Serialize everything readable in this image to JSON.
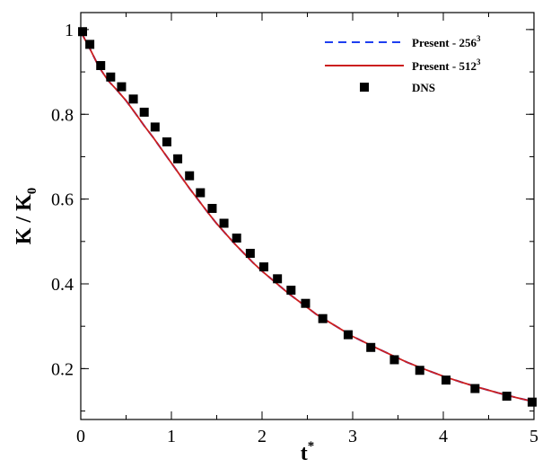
{
  "chart_data": {
    "type": "line",
    "xlabel": "t",
    "xlabel_superscript": "*",
    "ylabel": "K / K",
    "ylabel_subscript": "0",
    "xlim": [
      0,
      5
    ],
    "ylim": [
      0.08,
      1.04
    ],
    "xticks": [
      0,
      1,
      2,
      3,
      4,
      5
    ],
    "yticks": [
      0.2,
      0.4,
      0.6,
      0.8,
      1
    ],
    "grid": false,
    "legend_position": "top-right",
    "series": [
      {
        "name": "Present - 256",
        "name_superscript": "3",
        "style": "dashed",
        "color": "#1f3ff0",
        "x": [
          0,
          0.1,
          0.2,
          0.3,
          0.4,
          0.5,
          0.6,
          0.7,
          0.8,
          0.9,
          1.0,
          1.1,
          1.2,
          1.3,
          1.4,
          1.5,
          1.6,
          1.7,
          1.8,
          1.9,
          2.0,
          2.1,
          2.2,
          2.3,
          2.4,
          2.5,
          2.6,
          2.8,
          3.0,
          3.2,
          3.4,
          3.6,
          3.8,
          4.0,
          4.2,
          4.4,
          4.6,
          4.8,
          5.0
        ],
        "y": [
          0.995,
          0.955,
          0.912,
          0.88,
          0.857,
          0.832,
          0.803,
          0.773,
          0.745,
          0.715,
          0.685,
          0.655,
          0.625,
          0.597,
          0.569,
          0.542,
          0.518,
          0.494,
          0.472,
          0.45,
          0.43,
          0.412,
          0.394,
          0.376,
          0.36,
          0.344,
          0.328,
          0.302,
          0.276,
          0.255,
          0.235,
          0.215,
          0.198,
          0.182,
          0.168,
          0.155,
          0.143,
          0.132,
          0.122
        ]
      },
      {
        "name": "Present - 512",
        "name_superscript": "3",
        "style": "solid",
        "color": "#cc1f1f",
        "x": [
          0,
          0.1,
          0.2,
          0.3,
          0.4,
          0.5,
          0.6,
          0.7,
          0.8,
          0.9,
          1.0,
          1.1,
          1.2,
          1.3,
          1.4,
          1.5,
          1.6,
          1.7,
          1.8,
          1.9,
          2.0,
          2.1,
          2.2,
          2.3,
          2.4,
          2.5,
          2.6,
          2.8,
          3.0,
          3.2,
          3.4,
          3.6,
          3.8,
          4.0,
          4.2,
          4.4,
          4.6,
          4.8,
          5.0
        ],
        "y": [
          0.995,
          0.955,
          0.912,
          0.88,
          0.857,
          0.832,
          0.803,
          0.773,
          0.745,
          0.715,
          0.685,
          0.655,
          0.625,
          0.597,
          0.569,
          0.542,
          0.518,
          0.494,
          0.472,
          0.45,
          0.43,
          0.412,
          0.394,
          0.376,
          0.36,
          0.344,
          0.328,
          0.302,
          0.276,
          0.255,
          0.235,
          0.215,
          0.198,
          0.182,
          0.168,
          0.155,
          0.143,
          0.132,
          0.122
        ]
      },
      {
        "name": "DNS",
        "style": "markers",
        "marker": "square",
        "color": "#000000",
        "x": [
          0.02,
          0.1,
          0.22,
          0.33,
          0.45,
          0.58,
          0.7,
          0.82,
          0.95,
          1.07,
          1.2,
          1.32,
          1.45,
          1.58,
          1.72,
          1.87,
          2.02,
          2.17,
          2.32,
          2.48,
          2.67,
          2.95,
          3.2,
          3.46,
          3.74,
          4.03,
          4.35,
          4.7,
          4.98
        ],
        "y": [
          0.995,
          0.965,
          0.915,
          0.888,
          0.865,
          0.836,
          0.805,
          0.77,
          0.735,
          0.695,
          0.655,
          0.615,
          0.578,
          0.543,
          0.508,
          0.472,
          0.44,
          0.412,
          0.385,
          0.354,
          0.318,
          0.28,
          0.25,
          0.221,
          0.196,
          0.173,
          0.153,
          0.135,
          0.121
        ]
      }
    ]
  }
}
